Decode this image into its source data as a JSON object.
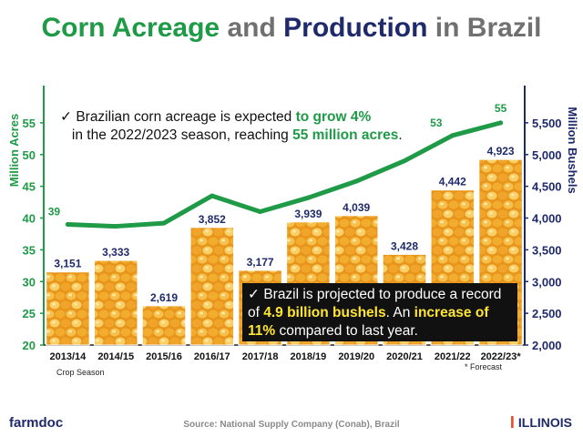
{
  "title": {
    "part1": "Corn Acreage",
    "part2": " and ",
    "part3": "Production",
    "part4": " in Brazil"
  },
  "callout_top": {
    "check": "✓",
    "text1": "Brazilian corn acreage is expected ",
    "hl1": "to grow 4%",
    "text2": "in the 2022/2023 season, reaching ",
    "hl2": "55 million acres",
    "text3": "."
  },
  "callout_bottom": {
    "check": "✓",
    "text1": "Brazil is projected to produce a record of ",
    "hl1": "4.9 billion bushels",
    "text2": ". An ",
    "hl2": "increase of 11%",
    "text3": " compared to last year."
  },
  "notes": {
    "xlabel": "Crop Season",
    "forecast": "* Forecast"
  },
  "footer": {
    "source": "Source: National Supply Company (Conab), Brazil",
    "logo_left": "farmdoc",
    "logo_right": "ILLINOIS",
    "logo_right_mark": "I"
  },
  "colors": {
    "green": "#1f9a46",
    "navy": "#1f2a6b",
    "gray": "#707070"
  },
  "chart_data": {
    "type": "bar+line",
    "categories": [
      "2013/14",
      "2014/15",
      "2015/16",
      "2016/17",
      "2017/18",
      "2018/19",
      "2019/20",
      "2020/21",
      "2021/22",
      "2022/23*"
    ],
    "bar_series": {
      "name": "Million Bushels",
      "values": [
        3151,
        3333,
        2619,
        3852,
        3177,
        3939,
        4039,
        3428,
        4442,
        4923
      ],
      "labels": [
        "3,151",
        "3,333",
        "2,619",
        "3,852",
        "3,177",
        "3,939",
        "4,039",
        "3,428",
        "4,442",
        "4,923"
      ],
      "axis": "right",
      "ylim": [
        2000,
        6000
      ],
      "ticks": [
        "2,000",
        "2,500",
        "3,000",
        "3,500",
        "4,000",
        "4,500",
        "5,000",
        "5,500"
      ],
      "tick_values": [
        2000,
        2500,
        3000,
        3500,
        4000,
        4500,
        5000,
        5500
      ]
    },
    "line_series": {
      "name": "Million Acres",
      "values": [
        39,
        38.7,
        39.2,
        43.5,
        41,
        43.2,
        45.8,
        49,
        53,
        55
      ],
      "labels": {
        "0": "39",
        "8": "53",
        "9": "55"
      },
      "axis": "left",
      "ylim": [
        20,
        60
      ],
      "ticks": [
        "20",
        "25",
        "30",
        "35",
        "40",
        "45",
        "50",
        "55"
      ],
      "tick_values": [
        20,
        25,
        30,
        35,
        40,
        45,
        50,
        55
      ]
    },
    "ylabel_left": "Million Acres",
    "ylabel_right": "Million Bushels",
    "xlabel": "Crop Season",
    "legend": "none"
  }
}
